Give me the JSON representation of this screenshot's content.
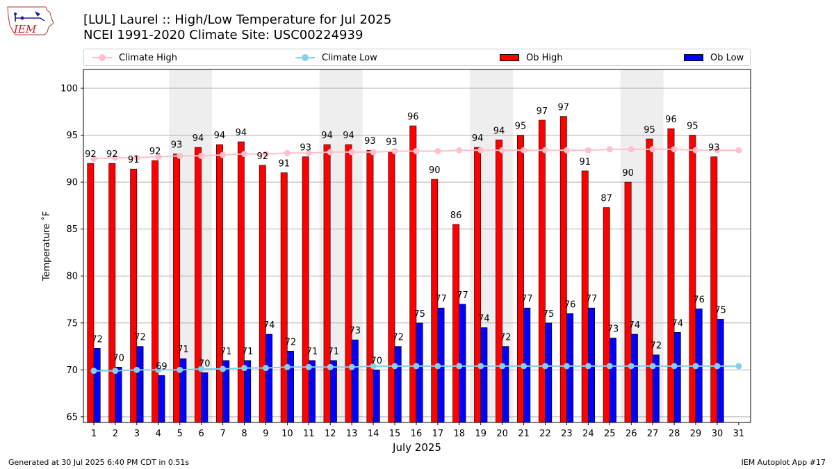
{
  "title_line1": "[LUL] Laurel :: High/Low Temperature for Jul 2025",
  "title_line2": "NCEI 1991-2020 Climate Site: USC00224939",
  "footer_left": "Generated at 30 Jul 2025 6:40 PM CDT in 0.51s",
  "footer_right": "IEM Autoplot App #17",
  "logo_text": "IEM",
  "legend": {
    "climate_high": "Climate High",
    "climate_low": "Climate Low",
    "ob_high": "Ob High",
    "ob_low": "Ob Low"
  },
  "colors": {
    "ob_high": "#ff0000",
    "ob_low": "#0000ff",
    "climate_high": "#ffc0cb",
    "climate_low": "#87ceeb",
    "weekend_shade": "#eeeeee",
    "grid": "#b0b0b0"
  },
  "chart_data": {
    "type": "bar",
    "xlabel": "July 2025",
    "ylabel": "Temperature ˚F",
    "ylim": [
      64.4,
      102
    ],
    "yticks": [
      65,
      70,
      75,
      80,
      85,
      90,
      95,
      100
    ],
    "x": [
      1,
      2,
      3,
      4,
      5,
      6,
      7,
      8,
      9,
      10,
      11,
      12,
      13,
      14,
      15,
      16,
      17,
      18,
      19,
      20,
      21,
      22,
      23,
      24,
      25,
      26,
      27,
      28,
      29,
      30,
      31
    ],
    "grid": "horizontal",
    "weekend_shading": [
      [
        5,
        6
      ],
      [
        12,
        13
      ],
      [
        19,
        20
      ],
      [
        26,
        27
      ]
    ],
    "ob_high": [
      92,
      92,
      91,
      92,
      93,
      94,
      94,
      94,
      92,
      91,
      93,
      94,
      94,
      93,
      93,
      96,
      90,
      86,
      94,
      94,
      95,
      97,
      97,
      91,
      87,
      90,
      95,
      96,
      95,
      93,
      null
    ],
    "ob_low": [
      72,
      70,
      72,
      69,
      71,
      70,
      71,
      71,
      74,
      72,
      71,
      71,
      73,
      70,
      72,
      75,
      77,
      77,
      74,
      72,
      77,
      75,
      76,
      77,
      73,
      74,
      72,
      74,
      76,
      75,
      null
    ],
    "ob_high_plotted": [
      92.0,
      92.0,
      91.4,
      92.3,
      93.0,
      93.7,
      94.0,
      94.3,
      91.8,
      91.0,
      92.7,
      94.0,
      94.0,
      93.4,
      93.3,
      96.0,
      90.3,
      85.5,
      93.7,
      94.5,
      95.0,
      96.6,
      97.0,
      91.2,
      87.3,
      90.0,
      94.6,
      95.7,
      95.0,
      92.7,
      null
    ],
    "ob_low_plotted": [
      72.3,
      70.3,
      72.5,
      69.4,
      71.2,
      69.7,
      71.0,
      71.0,
      73.8,
      72.0,
      71.0,
      71.0,
      73.2,
      70.0,
      72.5,
      75.0,
      76.6,
      77.0,
      74.5,
      72.5,
      76.6,
      75.0,
      76.0,
      76.6,
      73.4,
      73.8,
      71.6,
      74.0,
      76.5,
      75.4,
      null
    ],
    "climate_high": [
      92.5,
      92.6,
      92.6,
      92.7,
      92.8,
      92.8,
      92.9,
      93.0,
      93.0,
      93.1,
      93.1,
      93.2,
      93.2,
      93.2,
      93.3,
      93.3,
      93.3,
      93.4,
      93.4,
      93.4,
      93.4,
      93.4,
      93.4,
      93.4,
      93.5,
      93.5,
      93.5,
      93.5,
      93.4,
      93.4,
      93.4
    ],
    "climate_low": [
      69.9,
      69.9,
      70.0,
      70.0,
      70.0,
      70.1,
      70.1,
      70.2,
      70.2,
      70.3,
      70.3,
      70.3,
      70.3,
      70.4,
      70.4,
      70.4,
      70.4,
      70.4,
      70.4,
      70.4,
      70.4,
      70.4,
      70.4,
      70.4,
      70.4,
      70.4,
      70.4,
      70.4,
      70.4,
      70.4,
      70.4
    ]
  }
}
